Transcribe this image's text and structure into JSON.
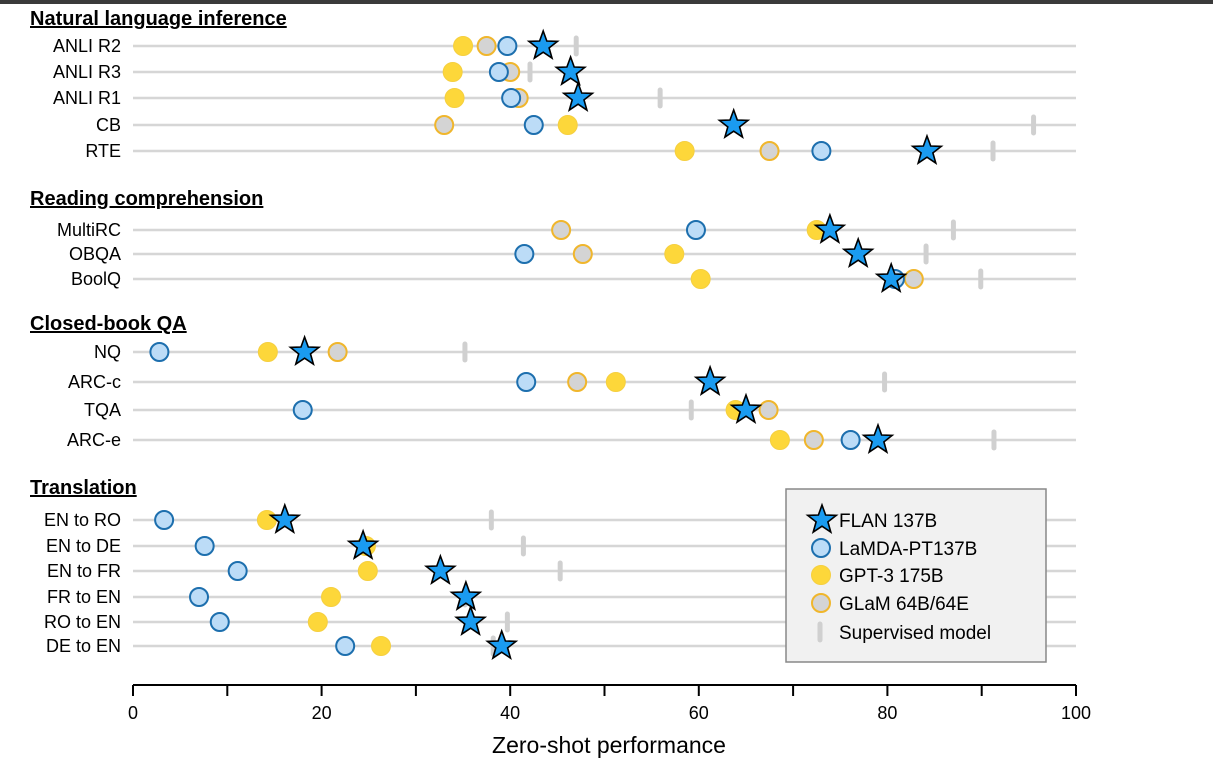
{
  "chart_data": {
    "type": "scatter",
    "title": "",
    "xlabel": "Zero-shot performance",
    "xlim": [
      0,
      100
    ],
    "xticks": [
      0,
      20,
      40,
      60,
      80,
      100
    ],
    "grid": "horizontal row lines",
    "legend_position": "bottom-right",
    "series": [
      {
        "key": "flan",
        "name": "FLAN 137B",
        "marker": "star",
        "color": "#1a9bf0"
      },
      {
        "key": "lamda",
        "name": "LaMDA-PT137B",
        "marker": "circle",
        "color": "#bcdcf7"
      },
      {
        "key": "gpt3",
        "name": "GPT-3 175B",
        "marker": "circle",
        "color": "#fdd73a"
      },
      {
        "key": "glam",
        "name": "GLaM 64B/64E",
        "marker": "circle",
        "color": "#d4d4d4"
      },
      {
        "key": "supervised",
        "name": "Supervised model",
        "marker": "bar",
        "color": "#d0d0d0"
      }
    ],
    "groups": [
      {
        "title": "Natural language inference",
        "rows": [
          {
            "label": "ANLI R2",
            "flan": 43.5,
            "lamda": 39.7,
            "gpt3": 35.0,
            "glam": 37.5,
            "supervised": 47.0
          },
          {
            "label": "ANLI R3",
            "flan": 46.4,
            "lamda": 38.8,
            "gpt3": 33.9,
            "glam": 40.0,
            "supervised": 42.1
          },
          {
            "label": "ANLI R1",
            "flan": 47.2,
            "lamda": 40.1,
            "gpt3": 34.1,
            "glam": 40.9,
            "supervised": 55.9
          },
          {
            "label": "CB",
            "flan": 63.7,
            "lamda": 42.5,
            "gpt3": 46.1,
            "glam": 33.0,
            "supervised": 95.5
          },
          {
            "label": "RTE",
            "flan": 84.2,
            "lamda": 73.0,
            "gpt3": 58.5,
            "glam": 67.5,
            "supervised": 91.2
          }
        ]
      },
      {
        "title": "Reading comprehension",
        "rows": [
          {
            "label": "MultiRC",
            "flan": 73.9,
            "lamda": 59.7,
            "gpt3": 72.5,
            "glam": 45.4,
            "supervised": 87.0
          },
          {
            "label": "OBQA",
            "flan": 76.9,
            "lamda": 41.5,
            "gpt3": 57.4,
            "glam": 47.7,
            "supervised": 84.1
          },
          {
            "label": "BoolQ",
            "flan": 80.4,
            "lamda": 80.8,
            "gpt3": 60.2,
            "glam": 82.8,
            "supervised": 89.9
          }
        ]
      },
      {
        "title": "Closed-book QA",
        "rows": [
          {
            "label": "NQ",
            "flan": 18.2,
            "lamda": 2.8,
            "gpt3": 14.3,
            "glam": 21.7,
            "supervised": 35.2
          },
          {
            "label": "ARC-c",
            "flan": 61.2,
            "lamda": 41.7,
            "gpt3": 51.2,
            "glam": 47.1,
            "supervised": 79.7
          },
          {
            "label": "TQA",
            "flan": 65.0,
            "lamda": 18.0,
            "gpt3": 63.9,
            "glam": 67.4,
            "supervised": 59.2
          },
          {
            "label": "ARC-e",
            "flan": 79.0,
            "lamda": 76.1,
            "gpt3": 68.6,
            "glam": 72.2,
            "supervised": 91.3
          }
        ]
      },
      {
        "title": "Translation",
        "rows": [
          {
            "label": "EN to RO",
            "flan": 16.1,
            "lamda": 3.3,
            "gpt3": 14.2,
            "glam": null,
            "supervised": 38.0
          },
          {
            "label": "EN to DE",
            "flan": 24.4,
            "lamda": 7.6,
            "gpt3": 24.7,
            "glam": null,
            "supervised": 41.4
          },
          {
            "label": "EN to FR",
            "flan": 32.6,
            "lamda": 11.1,
            "gpt3": 24.9,
            "glam": null,
            "supervised": 45.3
          },
          {
            "label": "FR to EN",
            "flan": 35.3,
            "lamda": 7.0,
            "gpt3": 21.0,
            "glam": null,
            "supervised": 35.2
          },
          {
            "label": "RO to EN",
            "flan": 35.8,
            "lamda": 9.2,
            "gpt3": 19.6,
            "glam": null,
            "supervised": 39.7
          },
          {
            "label": "DE to EN",
            "flan": 39.1,
            "lamda": 22.5,
            "gpt3": 26.3,
            "glam": null,
            "supervised": 38.2
          }
        ]
      }
    ]
  }
}
